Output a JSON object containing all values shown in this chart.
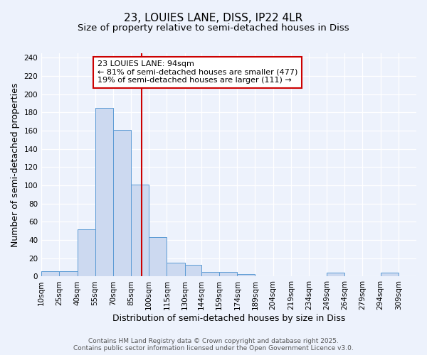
{
  "title": "23, LOUIES LANE, DISS, IP22 4LR",
  "subtitle": "Size of property relative to semi-detached houses in Diss",
  "xlabel": "Distribution of semi-detached houses by size in Diss",
  "ylabel": "Number of semi-detached properties",
  "bin_labels": [
    "10sqm",
    "25sqm",
    "40sqm",
    "55sqm",
    "70sqm",
    "85sqm",
    "100sqm",
    "115sqm",
    "130sqm",
    "144sqm",
    "159sqm",
    "174sqm",
    "189sqm",
    "204sqm",
    "219sqm",
    "234sqm",
    "249sqm",
    "264sqm",
    "279sqm",
    "294sqm",
    "309sqm"
  ],
  "bar_values": [
    6,
    6,
    52,
    185,
    161,
    101,
    43,
    15,
    13,
    5,
    5,
    3,
    0,
    0,
    0,
    0,
    4,
    0,
    0,
    4,
    0
  ],
  "bin_edges": [
    10,
    25,
    40,
    55,
    70,
    85,
    100,
    115,
    130,
    144,
    159,
    174,
    189,
    204,
    219,
    234,
    249,
    264,
    279,
    294,
    309,
    324
  ],
  "bar_color_face": "#ccd9f0",
  "bar_color_edge": "#5b9bd5",
  "vline_x": 94,
  "vline_color": "#cc0000",
  "annotation_title": "23 LOUIES LANE: 94sqm",
  "annotation_line1": "← 81% of semi-detached houses are smaller (477)",
  "annotation_line2": "19% of semi-detached houses are larger (111) →",
  "annotation_box_facecolor": "#ffffff",
  "annotation_box_edgecolor": "#cc0000",
  "ylim": [
    0,
    245
  ],
  "yticks": [
    0,
    20,
    40,
    60,
    80,
    100,
    120,
    140,
    160,
    180,
    200,
    220,
    240
  ],
  "footer1": "Contains HM Land Registry data © Crown copyright and database right 2025.",
  "footer2": "Contains public sector information licensed under the Open Government Licence v3.0.",
  "title_fontsize": 11,
  "subtitle_fontsize": 9.5,
  "axis_label_fontsize": 9,
  "tick_fontsize": 7.5,
  "annotation_fontsize": 8,
  "footer_fontsize": 6.5,
  "background_color": "#edf2fc"
}
